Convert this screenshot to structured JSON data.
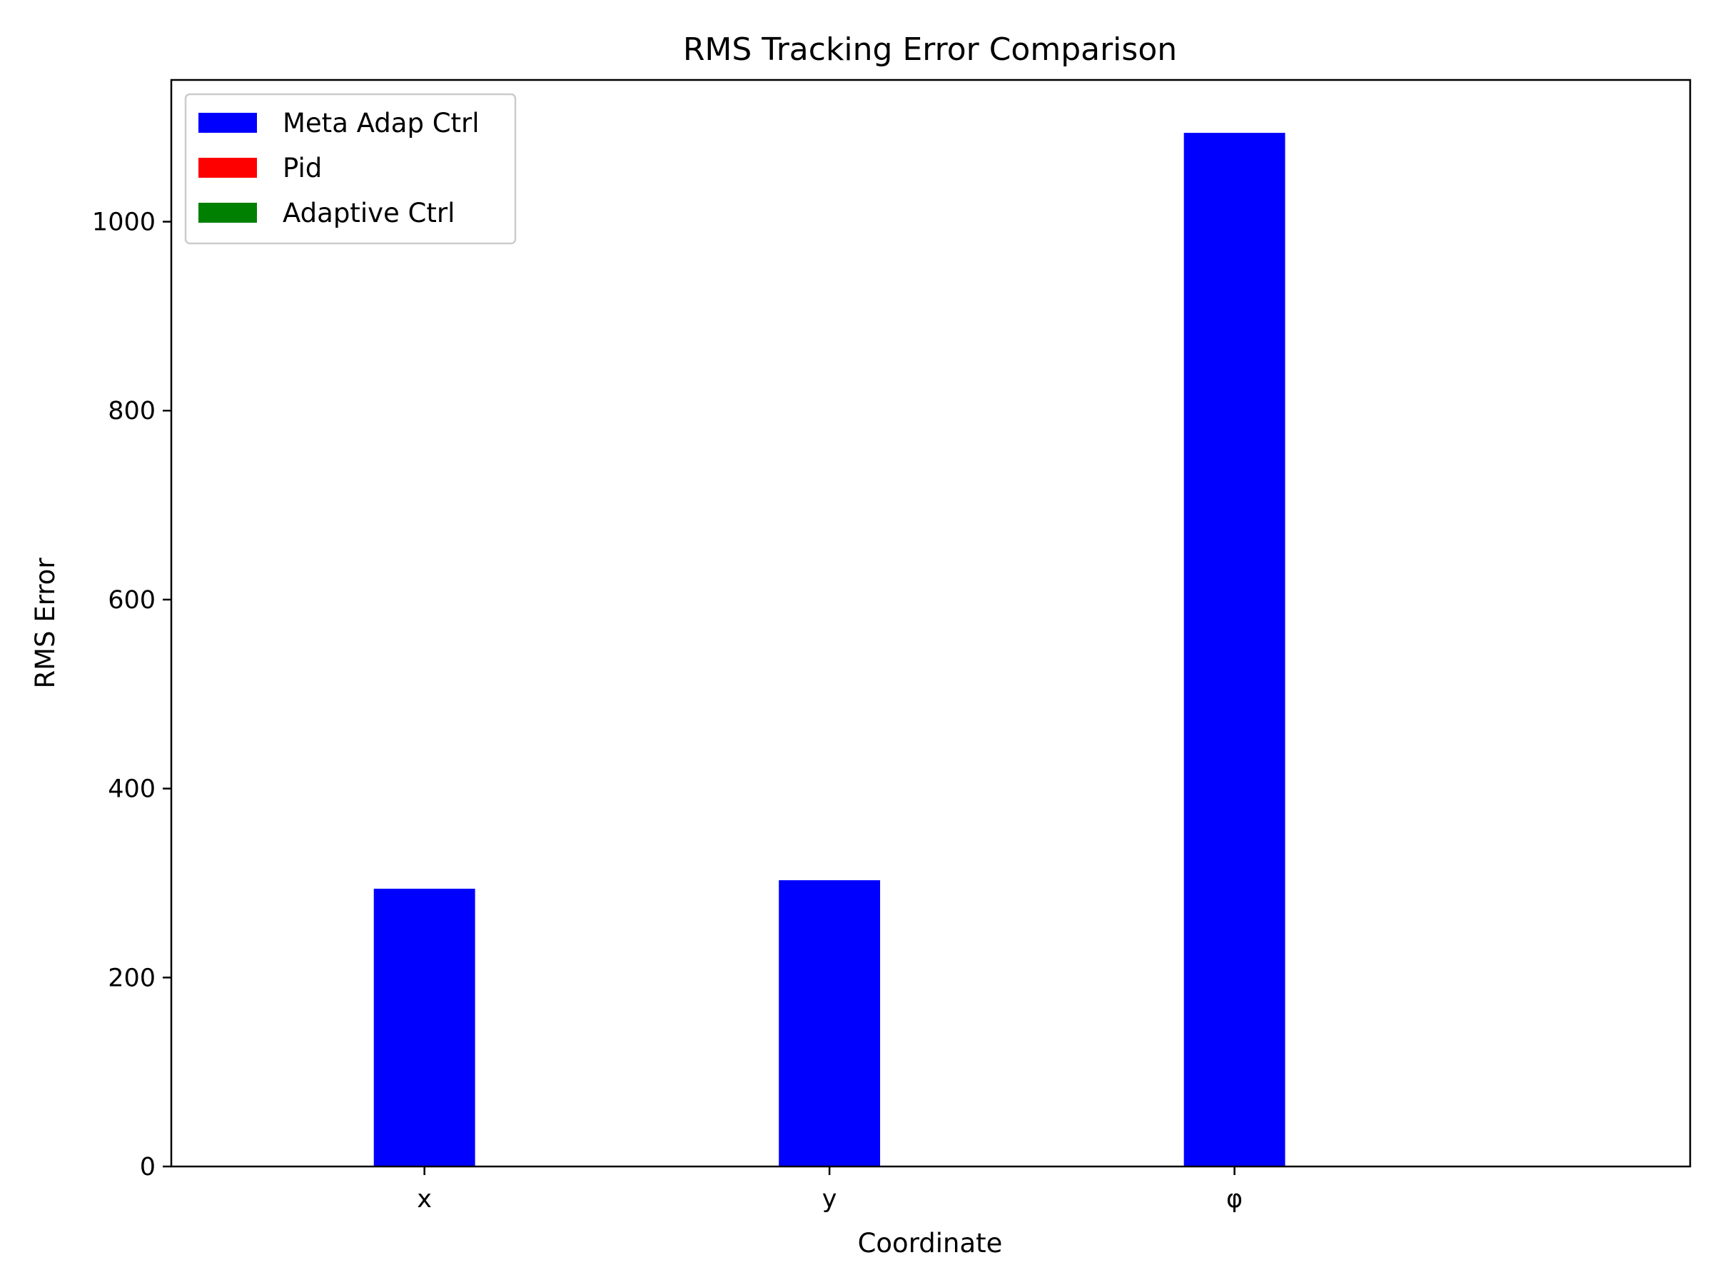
{
  "chart_data": {
    "type": "bar",
    "title": "RMS Tracking Error Comparison",
    "xlabel": "Coordinate",
    "ylabel": "RMS Error",
    "categories": [
      "x",
      "y",
      "φ"
    ],
    "series": [
      {
        "name": "Meta Adap Ctrl",
        "color": "#0000ff",
        "values": [
          294,
          303,
          1094
        ]
      },
      {
        "name": "Pid",
        "color": "#ff0000",
        "values": [
          0,
          0,
          0
        ]
      },
      {
        "name": "Adaptive Ctrl",
        "color": "#008000",
        "values": [
          0,
          0,
          0
        ]
      }
    ],
    "ylim": [
      0,
      1150
    ],
    "yticks": [
      0,
      200,
      400,
      600,
      800,
      1000
    ],
    "ytick_labels": [
      "0",
      "200",
      "400",
      "600",
      "800",
      "1000"
    ],
    "grid": false,
    "legend_position": "top-left"
  }
}
